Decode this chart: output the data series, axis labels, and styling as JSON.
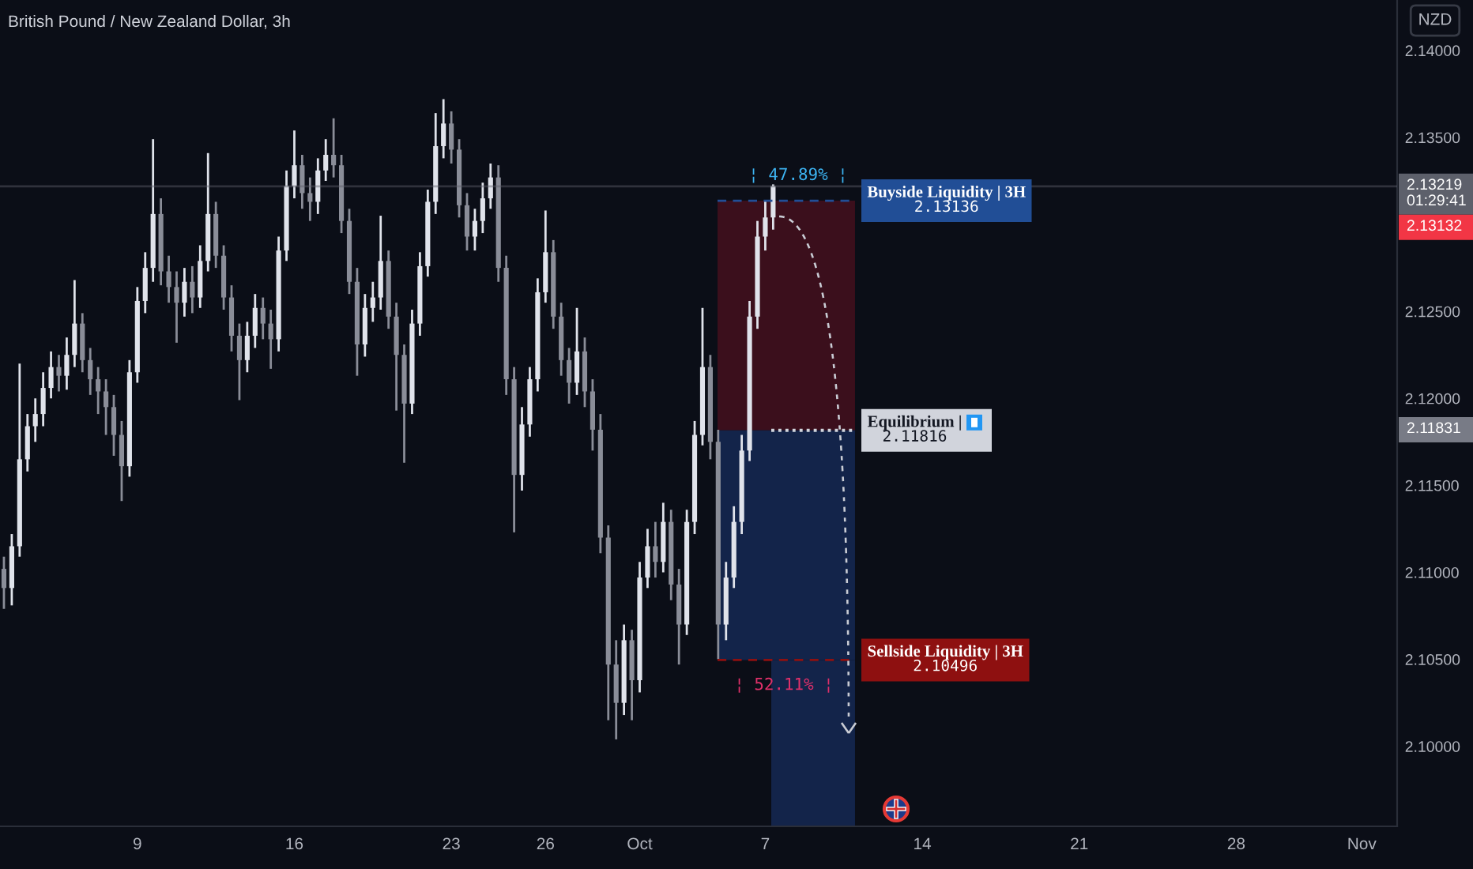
{
  "chart_data": {
    "type": "candlestick",
    "title": "British Pound / New Zealand Dollar, 3h",
    "ylabel": "NZD",
    "categories": [
      null,
      null,
      null,
      null,
      null,
      null,
      null,
      null,
      null,
      null,
      null,
      null,
      null,
      null,
      null,
      null,
      null,
      "9",
      null,
      null,
      null,
      null,
      null,
      null,
      null,
      null,
      null,
      null,
      null,
      null,
      null,
      null,
      null,
      null,
      null,
      null,
      null,
      "16",
      null,
      null,
      null,
      null,
      null,
      null,
      null,
      null,
      null,
      null,
      null,
      null,
      null,
      null,
      null,
      null,
      null,
      null,
      null,
      "23",
      null,
      null,
      null,
      null,
      null,
      null,
      null,
      null,
      null,
      null,
      null,
      "26",
      null,
      null,
      null,
      null,
      null,
      null,
      null,
      null,
      null,
      null,
      null,
      "Oct",
      null,
      null,
      null,
      null,
      null,
      null,
      null,
      null,
      null,
      null,
      null,
      null,
      null,
      null,
      null,
      "7",
      null,
      null,
      null,
      null,
      null,
      null,
      null,
      null,
      null,
      null,
      null,
      null,
      null,
      null,
      null,
      null,
      null,
      null,
      null,
      "14",
      null,
      null,
      null,
      null,
      null,
      null,
      null,
      null,
      null,
      null,
      null,
      null,
      null,
      null,
      null,
      null,
      null,
      null,
      null,
      "21",
      null,
      null,
      null,
      null,
      null,
      null,
      null,
      null,
      null,
      null,
      null,
      null,
      null,
      null,
      null,
      null,
      null,
      null,
      null,
      "28",
      null,
      null,
      null,
      null,
      null,
      null,
      null,
      null,
      null,
      null,
      null,
      null,
      null,
      null,
      null,
      "Nov",
      null,
      null,
      null,
      null
    ],
    "ohlc": [
      [
        2.1102,
        2.1109,
        2.1079,
        2.1091
      ],
      [
        2.1091,
        2.1122,
        2.1081,
        2.1115
      ],
      [
        2.1115,
        2.122,
        2.1109,
        2.1165
      ],
      [
        2.1165,
        2.1191,
        2.1158,
        2.1184
      ],
      [
        2.1184,
        2.12,
        2.1175,
        2.1191
      ],
      [
        2.1191,
        2.1215,
        2.1184,
        2.1206
      ],
      [
        2.1206,
        2.1227,
        2.12,
        2.1218
      ],
      [
        2.1218,
        2.1225,
        2.1204,
        2.1213
      ],
      [
        2.1213,
        2.1235,
        2.1205,
        2.1225
      ],
      [
        2.1225,
        2.1268,
        2.1218,
        2.1243
      ],
      [
        2.1243,
        2.1249,
        2.1215,
        2.1222
      ],
      [
        2.1222,
        2.1229,
        2.1202,
        2.1211
      ],
      [
        2.1211,
        2.1218,
        2.1191,
        2.1204
      ],
      [
        2.1204,
        2.1211,
        2.1179,
        2.1195
      ],
      [
        2.1195,
        2.1202,
        2.1167,
        2.1179
      ],
      [
        2.1179,
        2.1187,
        2.1141,
        2.1161
      ],
      [
        2.1161,
        2.1222,
        2.1155,
        2.1215
      ],
      [
        2.1215,
        2.1264,
        2.1209,
        2.1256
      ],
      [
        2.1256,
        2.1284,
        2.1249,
        2.1275
      ],
      [
        2.1275,
        2.1349,
        2.1267,
        2.1306
      ],
      [
        2.1306,
        2.1315,
        2.1265,
        2.1273
      ],
      [
        2.1273,
        2.1282,
        2.1255,
        2.1264
      ],
      [
        2.1264,
        2.1273,
        2.1232,
        2.1255
      ],
      [
        2.1255,
        2.1275,
        2.1247,
        2.1267
      ],
      [
        2.1267,
        2.1276,
        2.1249,
        2.1258
      ],
      [
        2.1258,
        2.1288,
        2.1252,
        2.1279
      ],
      [
        2.1279,
        2.1341,
        2.1273,
        2.1306
      ],
      [
        2.1306,
        2.1313,
        2.1275,
        2.1282
      ],
      [
        2.1282,
        2.1288,
        2.1251,
        2.1258
      ],
      [
        2.1258,
        2.1265,
        2.1227,
        2.1236
      ],
      [
        2.1236,
        2.1243,
        2.1199,
        2.1222
      ],
      [
        2.1222,
        2.1244,
        2.1215,
        2.1236
      ],
      [
        2.1236,
        2.126,
        2.1229,
        2.1252
      ],
      [
        2.1252,
        2.1258,
        2.1234,
        2.1243
      ],
      [
        2.1243,
        2.1251,
        2.1217,
        2.1234
      ],
      [
        2.1234,
        2.1293,
        2.1227,
        2.1285
      ],
      [
        2.1285,
        2.1331,
        2.1279,
        2.1322
      ],
      [
        2.1322,
        2.1354,
        2.1315,
        2.1334
      ],
      [
        2.1334,
        2.134,
        2.1309,
        2.1318
      ],
      [
        2.1318,
        2.1327,
        2.1302,
        2.1313
      ],
      [
        2.1313,
        2.1338,
        2.1306,
        2.1331
      ],
      [
        2.1331,
        2.1349,
        2.1325,
        2.134
      ],
      [
        2.134,
        2.1361,
        2.1327,
        2.1334
      ],
      [
        2.1334,
        2.134,
        2.1295,
        2.1302
      ],
      [
        2.1302,
        2.1309,
        2.126,
        2.1267
      ],
      [
        2.1267,
        2.1275,
        2.1213,
        2.1231
      ],
      [
        2.1231,
        2.126,
        2.1224,
        2.1252
      ],
      [
        2.1252,
        2.1267,
        2.1244,
        2.1258
      ],
      [
        2.1258,
        2.1305,
        2.1251,
        2.1279
      ],
      [
        2.1279,
        2.1285,
        2.124,
        2.1247
      ],
      [
        2.1247,
        2.1255,
        2.1193,
        2.1225
      ],
      [
        2.1225,
        2.1231,
        2.1163,
        2.1197
      ],
      [
        2.1197,
        2.1251,
        2.1191,
        2.1243
      ],
      [
        2.1243,
        2.1284,
        2.1236,
        2.1276
      ],
      [
        2.1276,
        2.132,
        2.127,
        2.1313
      ],
      [
        2.1313,
        2.1364,
        2.1306,
        2.1345
      ],
      [
        2.1345,
        2.1372,
        2.1338,
        2.1358
      ],
      [
        2.1358,
        2.1365,
        2.1335,
        2.1343
      ],
      [
        2.1343,
        2.1349,
        2.1304,
        2.1311
      ],
      [
        2.1311,
        2.1318,
        2.1285,
        2.1293
      ],
      [
        2.1293,
        2.1309,
        2.1285,
        2.1302
      ],
      [
        2.1302,
        2.1324,
        2.1295,
        2.1315
      ],
      [
        2.1315,
        2.1335,
        2.1309,
        2.1327
      ],
      [
        2.1327,
        2.1334,
        2.1267,
        2.1275
      ],
      [
        2.1275,
        2.1282,
        2.1202,
        2.1211
      ],
      [
        2.1211,
        2.1218,
        2.1123,
        2.1156
      ],
      [
        2.1156,
        2.1195,
        2.1147,
        2.1185
      ],
      [
        2.1185,
        2.1218,
        2.1178,
        2.1211
      ],
      [
        2.1211,
        2.1269,
        2.1204,
        2.1261
      ],
      [
        2.1261,
        2.1308,
        2.1255,
        2.1284
      ],
      [
        2.1284,
        2.1291,
        2.124,
        2.1247
      ],
      [
        2.1247,
        2.1255,
        2.1213,
        2.1222
      ],
      [
        2.1222,
        2.1229,
        2.1197,
        2.1209
      ],
      [
        2.1209,
        2.1252,
        2.1202,
        2.1227
      ],
      [
        2.1227,
        2.1235,
        2.1195,
        2.1204
      ],
      [
        2.1204,
        2.1211,
        2.117,
        2.1182
      ],
      [
        2.1182,
        2.1191,
        2.1111,
        2.112
      ],
      [
        2.112,
        2.1127,
        2.1015,
        2.1047
      ],
      [
        2.1047,
        2.1061,
        2.1004,
        2.1025
      ],
      [
        2.1025,
        2.107,
        2.1018,
        2.1061
      ],
      [
        2.1061,
        2.1067,
        2.1015,
        2.1038
      ],
      [
        2.1038,
        2.1106,
        2.1031,
        2.1097
      ],
      [
        2.1097,
        2.1125,
        2.1091,
        2.1115
      ],
      [
        2.1115,
        2.1129,
        2.1097,
        2.1106
      ],
      [
        2.1106,
        2.114,
        2.11,
        2.1129
      ],
      [
        2.1129,
        2.1136,
        2.1084,
        2.1093
      ],
      [
        2.1093,
        2.1102,
        2.1047,
        2.107
      ],
      [
        2.107,
        2.1136,
        2.1064,
        2.1129
      ],
      [
        2.1129,
        2.1187,
        2.1122,
        2.1179
      ],
      [
        2.1179,
        2.1252,
        2.1173,
        2.1218
      ],
      [
        2.1218,
        2.1225,
        2.1165,
        2.1175
      ],
      [
        2.1175,
        2.1182,
        2.105,
        2.107
      ],
      [
        2.107,
        2.1106,
        2.1061,
        2.1097
      ],
      [
        2.1097,
        2.1138,
        2.1091,
        2.1129
      ],
      [
        2.1129,
        2.1179,
        2.1122,
        2.117
      ],
      [
        2.117,
        2.1256,
        2.1164,
        2.1247
      ],
      [
        2.1247,
        2.1302,
        2.124,
        2.1293
      ],
      [
        2.1293,
        2.1314,
        2.1285,
        2.1304
      ],
      [
        2.1304,
        2.1323,
        2.1297,
        2.1322
      ],
      null,
      null,
      null,
      null,
      null,
      null,
      null,
      null,
      null,
      null,
      null,
      null,
      null,
      null,
      null,
      null,
      null,
      null,
      null,
      null,
      null,
      null,
      null,
      null,
      null,
      null,
      null,
      null,
      null,
      null,
      null,
      null,
      null,
      null,
      null,
      null,
      null,
      null,
      null,
      null,
      null,
      null,
      null,
      null,
      null,
      null,
      null,
      null,
      null,
      null,
      null,
      null,
      null,
      null,
      null,
      null,
      null,
      null,
      null,
      null,
      null,
      null,
      null,
      null,
      null,
      null,
      null,
      null,
      null,
      null,
      null,
      null,
      null,
      null,
      null,
      null,
      null,
      null,
      null
    ],
    "colors": [
      "#8a8d98",
      "#e0e3eb",
      "#e0e3eb",
      "#e0e3eb",
      "#e0e3eb",
      "#e0e3eb",
      "#e0e3eb",
      "#8a8d98",
      "#e0e3eb",
      "#e0e3eb",
      "#8a8d98",
      "#8a8d98",
      "#8a8d98",
      "#8a8d98",
      "#8a8d98",
      "#8a8d98",
      "#e0e3eb",
      "#e0e3eb",
      "#e0e3eb",
      "#e0e3eb",
      "#8a8d98",
      "#8a8d98",
      "#8a8d98",
      "#e0e3eb",
      "#8a8d98",
      "#e0e3eb",
      "#e0e3eb",
      "#8a8d98",
      "#8a8d98",
      "#8a8d98",
      "#8a8d98",
      "#e0e3eb",
      "#e0e3eb",
      "#8a8d98",
      "#8a8d98",
      "#e0e3eb",
      "#e0e3eb",
      "#e0e3eb",
      "#8a8d98",
      "#8a8d98",
      "#e0e3eb",
      "#e0e3eb",
      "#8a8d98",
      "#8a8d98",
      "#8a8d98",
      "#8a8d98",
      "#e0e3eb",
      "#e0e3eb",
      "#e0e3eb",
      "#8a8d98",
      "#8a8d98",
      "#8a8d98",
      "#e0e3eb",
      "#e0e3eb",
      "#e0e3eb",
      "#e0e3eb",
      "#e0e3eb",
      "#8a8d98",
      "#8a8d98",
      "#8a8d98",
      "#e0e3eb",
      "#e0e3eb",
      "#e0e3eb",
      "#8a8d98",
      "#8a8d98",
      "#8a8d98",
      "#e0e3eb",
      "#e0e3eb",
      "#e0e3eb",
      "#e0e3eb",
      "#8a8d98",
      "#8a8d98",
      "#8a8d98",
      "#e0e3eb",
      "#8a8d98",
      "#8a8d98",
      "#8a8d98",
      "#8a8d98",
      "#8a8d98",
      "#e0e3eb",
      "#8a8d98",
      "#e0e3eb",
      "#e0e3eb",
      "#8a8d98",
      "#e0e3eb",
      "#8a8d98",
      "#8a8d98",
      "#e0e3eb",
      "#e0e3eb",
      "#e0e3eb",
      "#8a8d98",
      "#8a8d98",
      "#e0e3eb",
      "#e0e3eb",
      "#e0e3eb",
      "#e0e3eb",
      "#e0e3eb",
      "#e0e3eb",
      "#e0e3eb",
      null,
      null,
      null,
      null,
      null,
      null,
      null,
      null,
      null,
      null,
      null,
      null,
      null,
      null,
      null,
      null,
      null,
      null,
      null,
      null,
      null,
      null,
      null,
      null,
      null,
      null,
      null,
      null,
      null,
      null,
      null,
      null,
      null,
      null,
      null,
      null,
      null,
      null,
      null,
      null,
      null,
      null,
      null,
      null,
      null,
      null,
      null,
      null,
      null,
      null,
      null,
      null,
      null,
      null,
      null,
      null,
      null,
      null,
      null,
      null,
      null,
      null,
      null,
      null,
      null,
      null,
      null,
      null,
      null,
      null,
      null,
      null,
      null,
      null,
      null,
      null,
      null,
      null,
      null
    ],
    "ylim": [
      2.0954,
      2.1429
    ],
    "yticks": [
      {
        "value": 2.1,
        "label": "2.10000"
      },
      {
        "value": 2.105,
        "label": "2.10500"
      },
      {
        "value": 2.11,
        "label": "2.11000"
      },
      {
        "value": 2.115,
        "label": "2.11500"
      },
      {
        "value": 2.12,
        "label": "2.12000"
      },
      {
        "value": 2.125,
        "label": "2.12500"
      },
      {
        "value": 2.135,
        "label": "2.13500"
      },
      {
        "value": 2.14,
        "label": "2.14000"
      }
    ],
    "bands": [
      {
        "axis": "y",
        "from": 2.11816,
        "to": 2.13136,
        "color": "#3b0f1c"
      },
      {
        "axis": "y",
        "from": 2.10496,
        "to": 2.11816,
        "color": "#13244a"
      },
      {
        "axis": "y",
        "from": 2.0954,
        "to": 2.10496,
        "color": "#13244a"
      }
    ],
    "ref_lines": [
      {
        "axis": "y",
        "value": 2.13219,
        "label": "2.13219\n01:29:41",
        "color": "#5d606b"
      },
      {
        "axis": "y",
        "value": 2.13136,
        "label": "Buyside Liquidity | 3H\n2.13136",
        "color": "#214e96",
        "line_style": "dashed"
      },
      {
        "axis": "y",
        "value": 2.11816,
        "label": "Equilibrium |\n2.11816",
        "color": "#d1d4dc",
        "line_style": "dotted"
      },
      {
        "axis": "y",
        "value": 2.10496,
        "label": "Sellside Liquidity | 3H\n2.10496",
        "color": "#8e1010",
        "line_style": "dashed"
      }
    ],
    "annotations": [
      {
        "text": "¦ 47.89% ¦",
        "y": 2.13136
      },
      {
        "text": "¦ 52.11% ¦",
        "y": 2.10496
      },
      "2.13132",
      "2.11831"
    ]
  }
}
